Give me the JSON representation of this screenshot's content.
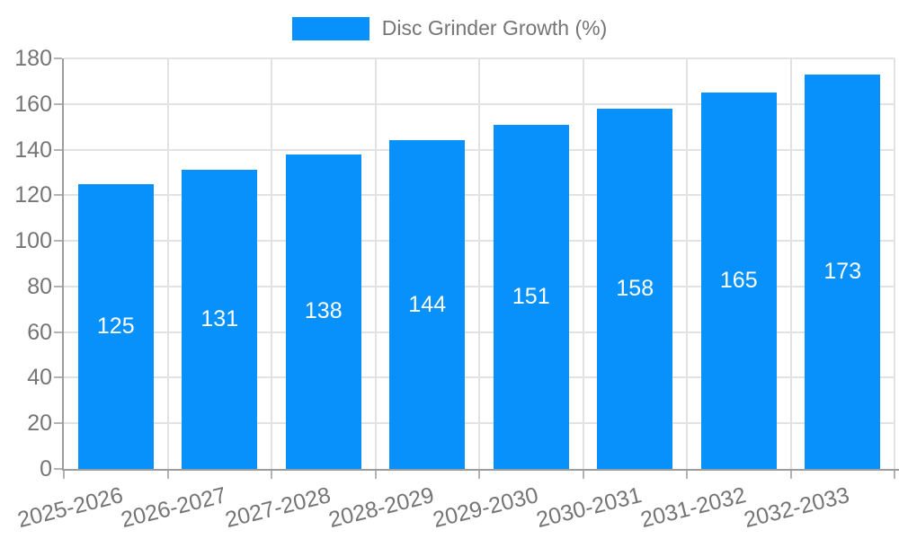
{
  "legend": {
    "label": "Disc Grinder Growth (%)"
  },
  "colors": {
    "bar": "#0991fb",
    "grid": "#e2e2e2",
    "axis": "#9c9c9c",
    "tick": "#b3b3b3",
    "text": "#757575",
    "value_text": "#ffffff"
  },
  "chart_data": {
    "type": "bar",
    "title": "Disc Grinder Growth (%)",
    "categories": [
      "2025-2026",
      "2026-2027",
      "2027-2028",
      "2028-2029",
      "2029-2030",
      "2030-2031",
      "2031-2032",
      "2032-2033"
    ],
    "series": [
      {
        "name": "Disc Grinder Growth (%)",
        "values": [
          125,
          131,
          138,
          144,
          151,
          158,
          165,
          173
        ]
      }
    ],
    "xlabel": "",
    "ylabel": "",
    "ylim": [
      0,
      180
    ],
    "ytick_step": 20,
    "grid": true,
    "legend_position": "top",
    "value_labels": "inside-center"
  }
}
